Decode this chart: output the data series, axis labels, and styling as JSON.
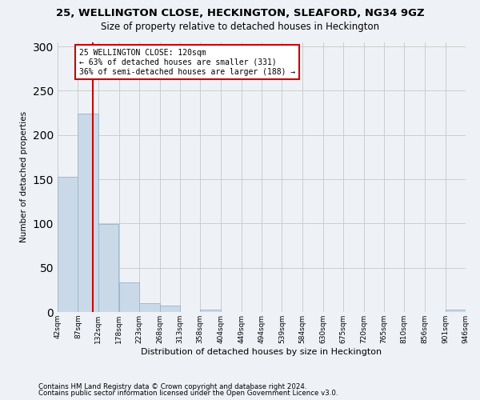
{
  "title1": "25, WELLINGTON CLOSE, HECKINGTON, SLEAFORD, NG34 9GZ",
  "title2": "Size of property relative to detached houses in Heckington",
  "xlabel": "Distribution of detached houses by size in Heckington",
  "ylabel": "Number of detached properties",
  "bin_edges": [
    42,
    87,
    132,
    178,
    223,
    268,
    313,
    358,
    404,
    449,
    494,
    539,
    584,
    630,
    675,
    720,
    765,
    810,
    856,
    901,
    946
  ],
  "bin_labels": [
    "42sqm",
    "87sqm",
    "132sqm",
    "178sqm",
    "223sqm",
    "268sqm",
    "313sqm",
    "358sqm",
    "404sqm",
    "449sqm",
    "494sqm",
    "539sqm",
    "584sqm",
    "630sqm",
    "675sqm",
    "720sqm",
    "765sqm",
    "810sqm",
    "856sqm",
    "901sqm",
    "946sqm"
  ],
  "bar_heights": [
    153,
    224,
    99,
    33,
    10,
    7,
    0,
    3,
    0,
    0,
    0,
    0,
    0,
    0,
    0,
    0,
    0,
    0,
    0,
    3
  ],
  "bar_color": "#c9d9e8",
  "bar_edgecolor": "#a0b8cc",
  "vline_x": 120,
  "vline_color": "#cc0000",
  "annotation_line1": "25 WELLINGTON CLOSE: 120sqm",
  "annotation_line2": "← 63% of detached houses are smaller (331)",
  "annotation_line3": "36% of semi-detached houses are larger (188) →",
  "ylim": [
    0,
    305
  ],
  "yticks": [
    0,
    50,
    100,
    150,
    200,
    250,
    300
  ],
  "footer1": "Contains HM Land Registry data © Crown copyright and database right 2024.",
  "footer2": "Contains public sector information licensed under the Open Government Licence v3.0.",
  "background_color": "#eef2f7",
  "plot_background": "#eef2f7"
}
